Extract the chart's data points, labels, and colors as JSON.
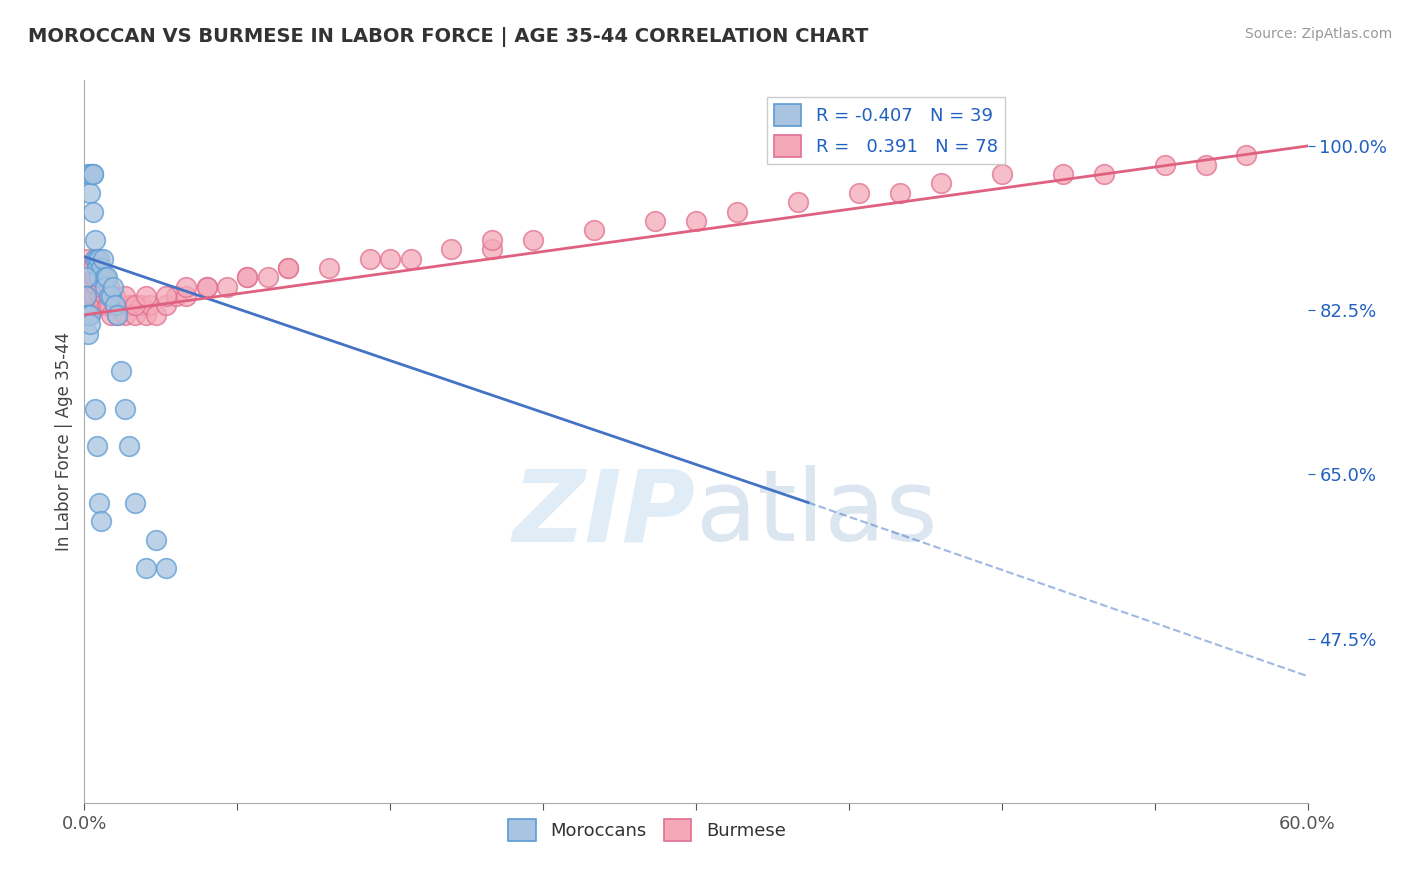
{
  "title": "MOROCCAN VS BURMESE IN LABOR FORCE | AGE 35-44 CORRELATION CHART",
  "source": "Source: ZipAtlas.com",
  "ylabel": "In Labor Force | Age 35-44",
  "yticks_right": [
    0.475,
    0.65,
    0.825,
    1.0
  ],
  "ytick_labels_right": [
    "47.5%",
    "65.0%",
    "82.5%",
    "100.0%"
  ],
  "xmin": 0.0,
  "xmax": 0.6,
  "ymin": 0.3,
  "ymax": 1.07,
  "moroccan_color": "#a8c4e0",
  "burmese_color": "#f4a8b8",
  "moroccan_edge_color": "#5b9bd5",
  "burmese_edge_color": "#e07090",
  "trend_moroccan_color": "#4472c4",
  "trend_burmese_color": "#e06080",
  "legend_moroccan_r": "-0.407",
  "legend_moroccan_n": "39",
  "legend_burmese_r": "0.391",
  "legend_burmese_n": "78",
  "background_color": "#ffffff",
  "grid_color": "#c8c8c8",
  "moroccan_trend_x0": 0.0,
  "moroccan_trend_y0": 0.882,
  "moroccan_trend_x1": 0.355,
  "moroccan_trend_y1": 0.62,
  "moroccan_trend_dash_x0": 0.355,
  "moroccan_trend_dash_y0": 0.62,
  "moroccan_trend_dash_x1": 0.6,
  "moroccan_trend_dash_y1": 0.435,
  "burmese_trend_x0": 0.0,
  "burmese_trend_y0": 0.82,
  "burmese_trend_x1": 0.6,
  "burmese_trend_y1": 1.0,
  "moroccan_x": [
    0.002,
    0.003,
    0.003,
    0.004,
    0.004,
    0.004,
    0.005,
    0.005,
    0.006,
    0.006,
    0.007,
    0.007,
    0.008,
    0.009,
    0.01,
    0.01,
    0.011,
    0.012,
    0.013,
    0.014,
    0.015,
    0.016,
    0.018,
    0.02,
    0.022,
    0.025,
    0.03,
    0.035,
    0.04,
    0.001,
    0.001,
    0.002,
    0.002,
    0.003,
    0.003,
    0.005,
    0.006,
    0.007,
    0.008
  ],
  "moroccan_y": [
    0.97,
    0.97,
    0.95,
    0.93,
    0.97,
    0.97,
    0.88,
    0.9,
    0.88,
    0.87,
    0.88,
    0.86,
    0.87,
    0.88,
    0.86,
    0.85,
    0.86,
    0.84,
    0.84,
    0.85,
    0.83,
    0.82,
    0.76,
    0.72,
    0.68,
    0.62,
    0.55,
    0.58,
    0.55,
    0.86,
    0.84,
    0.82,
    0.8,
    0.82,
    0.81,
    0.72,
    0.68,
    0.62,
    0.6
  ],
  "burmese_x": [
    0.001,
    0.001,
    0.002,
    0.002,
    0.003,
    0.003,
    0.003,
    0.004,
    0.004,
    0.005,
    0.005,
    0.006,
    0.007,
    0.007,
    0.008,
    0.009,
    0.01,
    0.011,
    0.012,
    0.013,
    0.015,
    0.016,
    0.018,
    0.02,
    0.022,
    0.025,
    0.028,
    0.03,
    0.032,
    0.035,
    0.04,
    0.045,
    0.05,
    0.06,
    0.07,
    0.08,
    0.09,
    0.1,
    0.12,
    0.14,
    0.16,
    0.18,
    0.2,
    0.22,
    0.25,
    0.28,
    0.3,
    0.32,
    0.35,
    0.38,
    0.4,
    0.42,
    0.45,
    0.48,
    0.5,
    0.53,
    0.55,
    0.57,
    0.002,
    0.003,
    0.004,
    0.005,
    0.006,
    0.007,
    0.008,
    0.01,
    0.012,
    0.015,
    0.02,
    0.025,
    0.03,
    0.04,
    0.05,
    0.06,
    0.08,
    0.1,
    0.15,
    0.2
  ],
  "burmese_y": [
    0.86,
    0.84,
    0.86,
    0.84,
    0.86,
    0.84,
    0.82,
    0.86,
    0.84,
    0.86,
    0.84,
    0.85,
    0.84,
    0.83,
    0.84,
    0.83,
    0.84,
    0.83,
    0.83,
    0.82,
    0.83,
    0.82,
    0.83,
    0.82,
    0.83,
    0.82,
    0.83,
    0.82,
    0.83,
    0.82,
    0.83,
    0.84,
    0.84,
    0.85,
    0.85,
    0.86,
    0.86,
    0.87,
    0.87,
    0.88,
    0.88,
    0.89,
    0.89,
    0.9,
    0.91,
    0.92,
    0.92,
    0.93,
    0.94,
    0.95,
    0.95,
    0.96,
    0.97,
    0.97,
    0.97,
    0.98,
    0.98,
    0.99,
    0.88,
    0.87,
    0.87,
    0.86,
    0.87,
    0.86,
    0.85,
    0.86,
    0.85,
    0.84,
    0.84,
    0.83,
    0.84,
    0.84,
    0.85,
    0.85,
    0.86,
    0.87,
    0.88,
    0.9
  ]
}
